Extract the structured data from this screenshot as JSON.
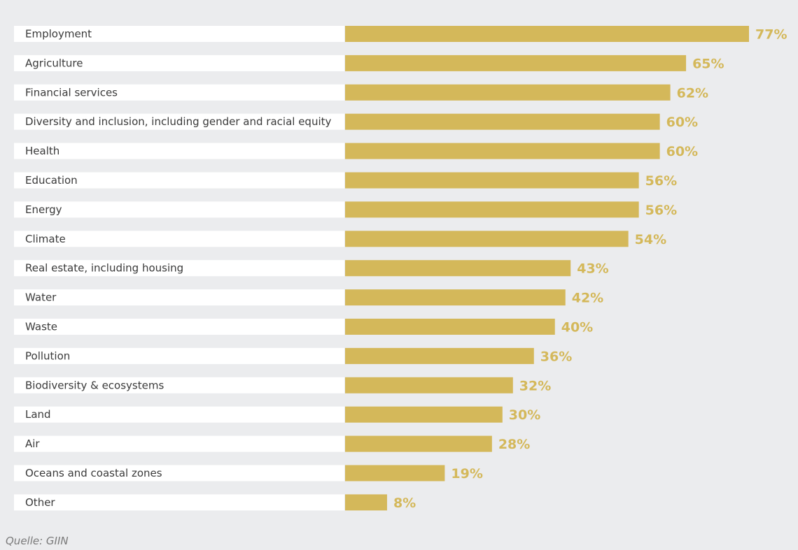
{
  "chart_data": {
    "type": "bar",
    "orientation": "horizontal",
    "title": "",
    "xlabel": "",
    "ylabel": "",
    "value_suffix": "%",
    "xlim": [
      0,
      77
    ],
    "grid": false,
    "legend": "none",
    "categories": [
      "Employment",
      "Agriculture",
      "Financial services",
      "Diversity and inclusion, including gender and racial equity",
      "Health",
      "Education",
      "Energy",
      "Climate",
      "Real estate, including housing",
      "Water",
      "Waste",
      "Pollution",
      "Biodiversity & ecosystems",
      "Land",
      "Air",
      "Oceans and coastal zones",
      "Other"
    ],
    "values": [
      77,
      65,
      62,
      60,
      60,
      56,
      56,
      54,
      43,
      42,
      40,
      36,
      32,
      30,
      28,
      19,
      8
    ],
    "colors": {
      "bar": "#d4b85a",
      "label_strip": "#ffffff",
      "value_text": "#d4b85a",
      "category_text": "#3a3a3a",
      "background": "#ebecee"
    }
  },
  "source": "Quelle: GIIN"
}
